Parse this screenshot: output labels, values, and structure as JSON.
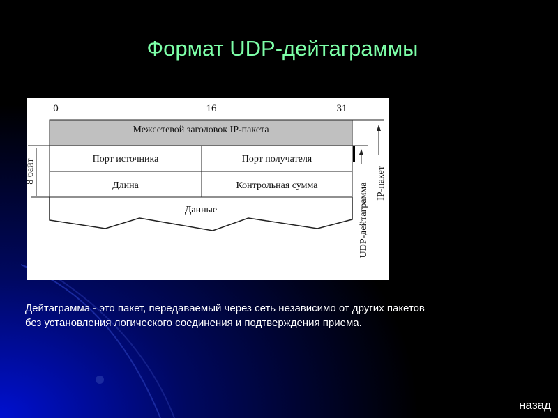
{
  "slide": {
    "title": "Формат UDP-дейтаграммы",
    "description_lines": [
      "Дейтаграмма - это пакет, передаваемый через сеть независимо от других пакетов",
      "без установления логического соединения и подтверждения приема."
    ],
    "back_link": "назад"
  },
  "diagram": {
    "bit_labels": [
      "0",
      "16",
      "31"
    ],
    "ip_header": "Межсетевой заголовок IP-пакета",
    "source_port": "Порт источника",
    "dest_port": "Порт получателя",
    "length": "Длина",
    "checksum": "Контрольная сумма",
    "data": "Данные",
    "header_size": "8 байт",
    "udp_datagram": "UDP-дейтаграмма",
    "ip_packet": "IP-пакет",
    "header_fill": "#c0c0c0"
  },
  "colors": {
    "title": "#7dffa8",
    "background": "#000000",
    "accent": "#0010c0"
  }
}
